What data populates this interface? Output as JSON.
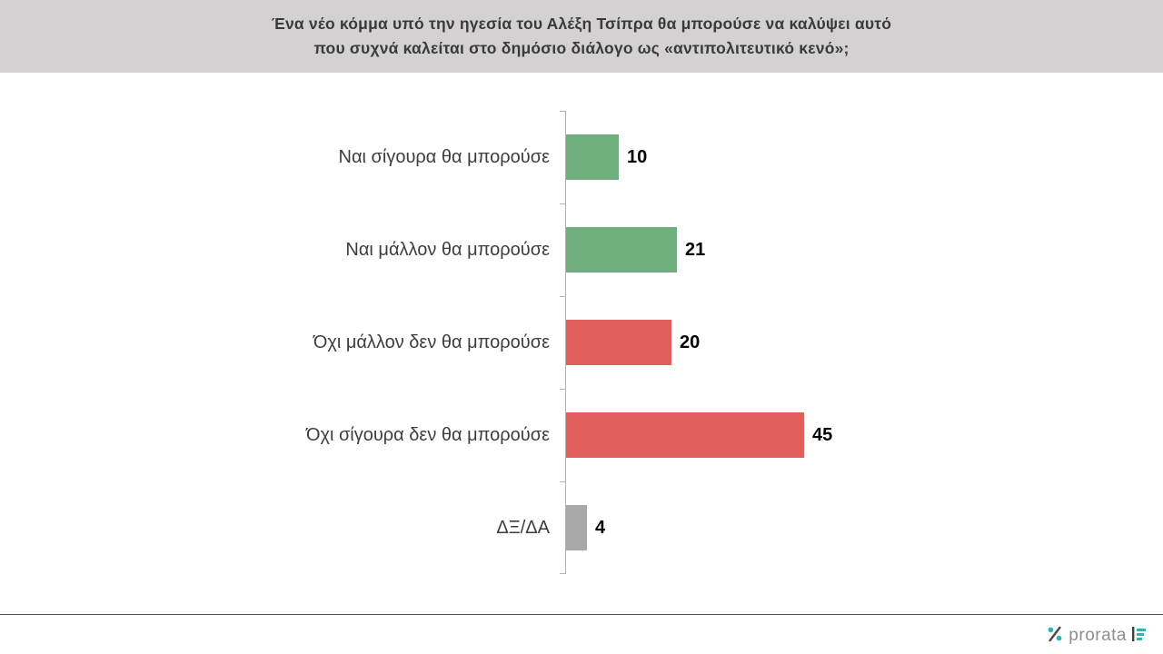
{
  "header": {
    "title_line1": "Ένα νέο κόμμα υπό την ηγεσία του Αλέξη Τσίπρα θα μπορούσε να καλύψει αυτό",
    "title_line2": "που συχνά καλείται στο δημόσιο διάλογο ως «αντιπολιτευτικό κενό»;"
  },
  "chart_data": {
    "type": "bar",
    "orientation": "horizontal",
    "title": "Ένα νέο κόμμα υπό την ηγεσία του Αλέξη Τσίπρα θα μπορούσε να καλύψει αυτό που συχνά καλείται στο δημόσιο διάλογο ως «αντιπολιτευτικό κενό»;",
    "categories": [
      "Ναι σίγουρα θα μπορούσε",
      "Ναι μάλλον θα μπορούσε",
      "Όχι μάλλον δεν θα μπορούσε",
      "Όχι σίγουρα δεν θα μπορούσε",
      "ΔΞ/ΔΑ"
    ],
    "values": [
      10,
      21,
      20,
      45,
      4
    ],
    "colors": [
      "#6fae7d",
      "#6fae7d",
      "#e2605c",
      "#e2605c",
      "#a9a9a9"
    ],
    "xlim": [
      0,
      50
    ],
    "value_labels_shown": true,
    "legend": "none",
    "grid": "off"
  },
  "footer": {
    "brand": "prorata"
  },
  "theme": {
    "banner_bg": "#d3d1d1",
    "green": "#6fae7d",
    "red": "#e2605c",
    "gray": "#a9a9a9",
    "teal": "#2fb5ad"
  }
}
